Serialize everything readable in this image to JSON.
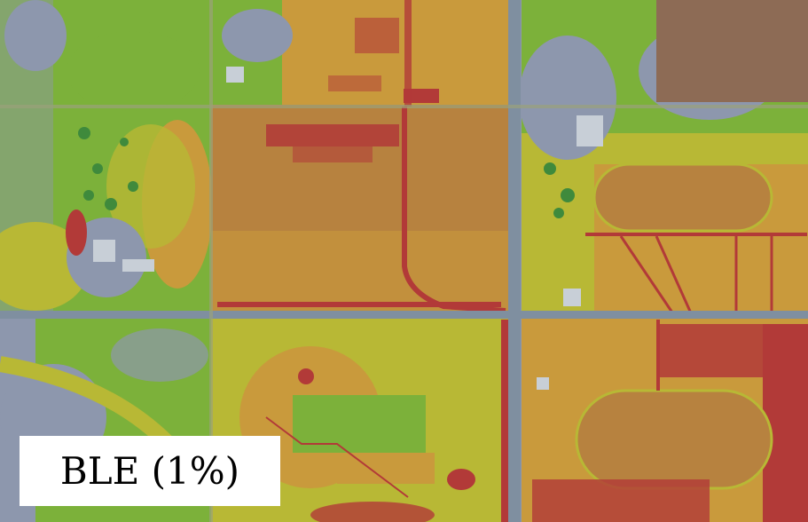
{
  "map": {
    "label": "BLE (1%)",
    "colors": {
      "background": "#8d97ad",
      "low": "#7cb13a",
      "medium_low": "#b8b835",
      "medium": "#c99a3c",
      "medium_high": "#b7823f",
      "high": "#b23a38",
      "road": "#7f8fa0",
      "bare_soil": "#8d6b55",
      "trees": "#3f8a3c",
      "buildings": "#c8cfd7",
      "label_box": "#ffffff",
      "label_text": "#000000"
    }
  }
}
